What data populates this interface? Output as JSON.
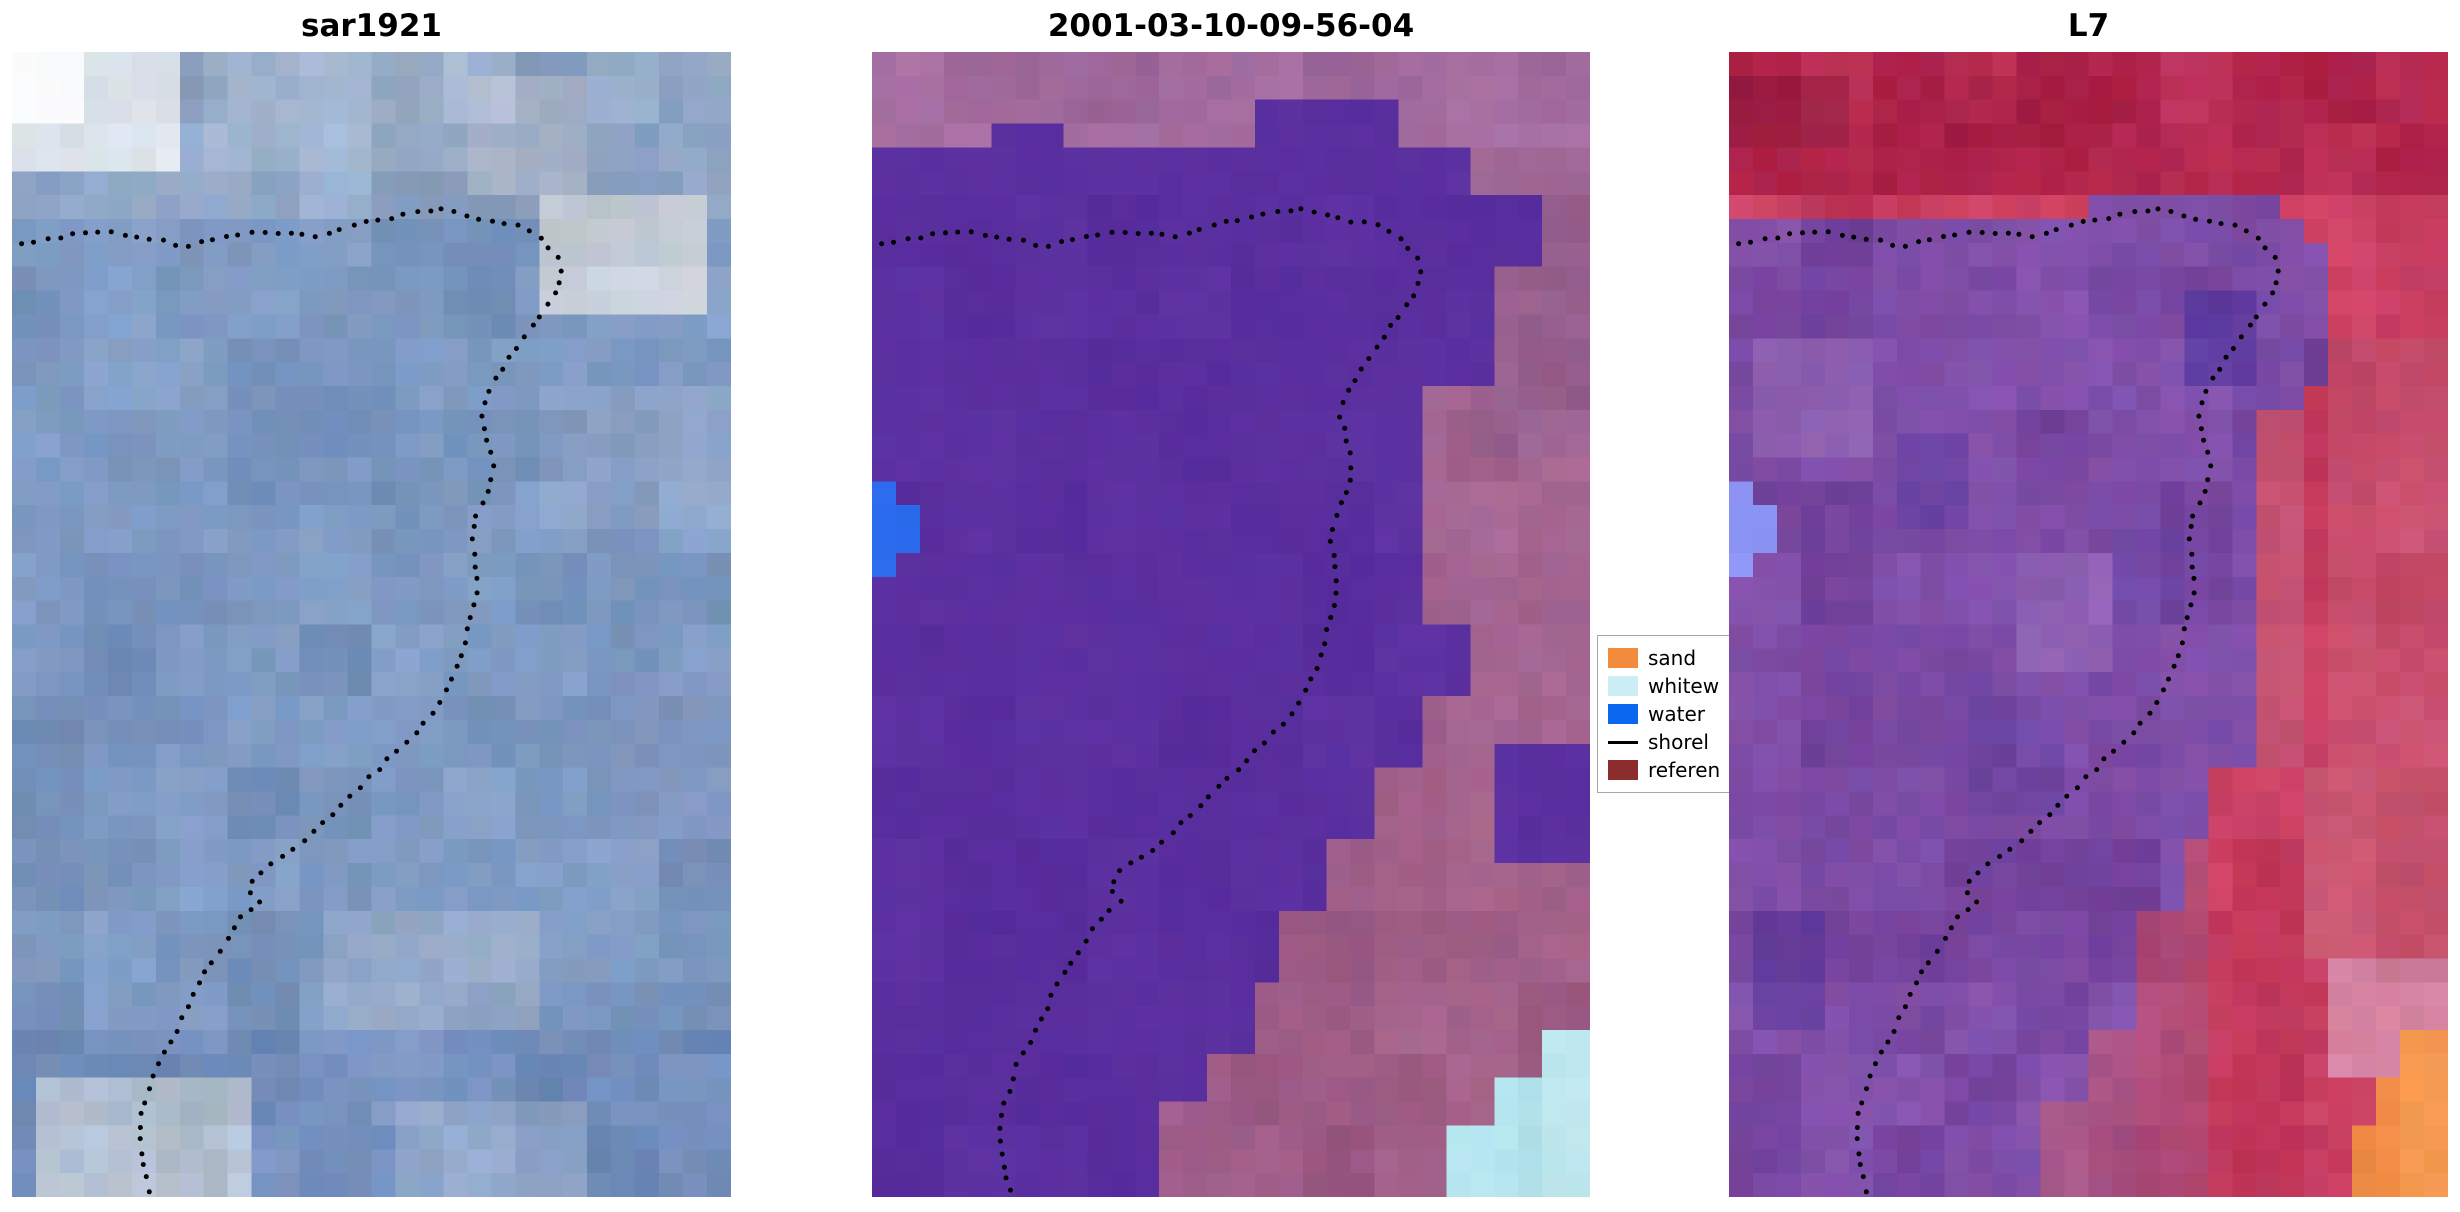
{
  "figure": {
    "background": "#ffffff",
    "grid": {
      "cols": 30,
      "rows": 48
    },
    "panels": [
      {
        "id": "sar1921",
        "title": "sar1921",
        "base": "#7d99c1",
        "base_noise": 16,
        "rects": [
          {
            "r": [
              0,
              0,
              1,
              0.155
            ],
            "c": "#8fa6c5",
            "n": 18
          },
          {
            "r": [
              0.28,
              0,
              0.62,
              0.105
            ],
            "c": "#9db1cb",
            "n": 16
          },
          {
            "r": [
              0.62,
              0.03,
              0.8,
              0.125
            ],
            "c": "#a9b7cd",
            "n": 14
          },
          {
            "r": [
              0,
              0,
              0.24,
              0.105
            ],
            "c": "#dfe5ec",
            "n": 14
          },
          {
            "r": [
              0,
              0,
              0.115,
              0.058
            ],
            "c": "#f7f9fb",
            "n": 6
          },
          {
            "r": [
              0.74,
              0.125,
              0.97,
              0.225
            ],
            "c": "#c5cdd7",
            "n": 16
          },
          {
            "r": [
              0.3,
              0.25,
              0.55,
              0.4
            ],
            "c": "#7591bb",
            "n": 13
          },
          {
            "r": [
              0.4,
              0.295,
              0.5,
              0.36
            ],
            "c": "#6b87b4",
            "n": 12
          },
          {
            "r": [
              0.05,
              0.43,
              0.3,
              0.6
            ],
            "c": "#7893bd",
            "n": 13
          },
          {
            "r": [
              0.72,
              0.29,
              1,
              0.425
            ],
            "c": "#8ba2c6",
            "n": 15
          },
          {
            "r": [
              0.84,
              0.55,
              1,
              0.72
            ],
            "c": "#8097c0",
            "n": 14
          },
          {
            "r": [
              0.1,
              0.62,
              0.38,
              0.72
            ],
            "c": "#7b96bf",
            "n": 13
          },
          {
            "r": [
              0.42,
              0.74,
              0.72,
              0.855
            ],
            "c": "#92a7c6",
            "n": 16
          },
          {
            "r": [
              0,
              0.86,
              1,
              1
            ],
            "c": "#7590bd",
            "n": 16
          },
          {
            "r": [
              0.04,
              0.9,
              0.34,
              0.99
            ],
            "c": "#b6c3d4",
            "n": 18
          },
          {
            "r": [
              0.55,
              0.92,
              0.8,
              1
            ],
            "c": "#8ca3c6",
            "n": 14
          }
        ]
      },
      {
        "id": "classified-2001-03-10-09-56-04",
        "title": "2001-03-10-09-56-04",
        "base": "#9c6095",
        "base_noise": 11,
        "rects": [
          {
            "r": [
              0,
              0,
              1,
              0.09
            ],
            "c": "#a26b9e",
            "n": 11
          },
          {
            "r": [
              0.8,
              0.09,
              1,
              0.35
            ],
            "c": "#99628f",
            "n": 11
          },
          {
            "r": [
              0.72,
              0.35,
              1,
              0.62
            ],
            "c": "#a2648f",
            "n": 11
          },
          {
            "r": [
              0.6,
              0.62,
              1,
              1
            ],
            "c": "#a05f86",
            "n": 11
          },
          {
            "r": [
              0.17,
              0.057,
              0.26,
              0.088
            ],
            "c": "#5a2f9f",
            "n": 5
          },
          {
            "r": [
              0.55,
              0.044,
              0.73,
              0.088
            ],
            "c": "#5a2f9f",
            "n": 5
          },
          {
            "r": [
              0,
              0.085,
              0.84,
              0.62
            ],
            "c": "#5a2f9f",
            "n": 5
          },
          {
            "r": [
              0,
              0.62,
              0.7,
              1
            ],
            "c": "#5a2f9f",
            "n": 5
          },
          {
            "r": [
              0.84,
              0.115,
              0.95,
              0.19
            ],
            "c": "#5a2f9f",
            "n": 5
          },
          {
            "r": [
              0.84,
              0.19,
              0.88,
              0.3
            ],
            "c": "#5a2f9f",
            "n": 5
          },
          {
            "r": [
              0.76,
              0.3,
              0.84,
              0.5
            ],
            "c": "#a0628e",
            "n": 11
          },
          {
            "r": [
              0.76,
              0.56,
              0.84,
              0.62
            ],
            "c": "#a0628e",
            "n": 11
          },
          {
            "r": [
              0.64,
              0.68,
              0.7,
              1
            ],
            "c": "#9f5e88",
            "n": 11
          },
          {
            "r": [
              0.58,
              0.745,
              0.64,
              1
            ],
            "c": "#9f5e88",
            "n": 11
          },
          {
            "r": [
              0.52,
              0.805,
              0.58,
              1
            ],
            "c": "#9f5e88",
            "n": 11
          },
          {
            "r": [
              0.46,
              0.865,
              0.52,
              1
            ],
            "c": "#9f5e88",
            "n": 11
          },
          {
            "r": [
              0.4,
              0.925,
              0.46,
              1
            ],
            "c": "#9d5c8a",
            "n": 11
          },
          {
            "r": [
              0.88,
              0.6,
              1,
              0.7
            ],
            "c": "#5a2f9f",
            "n": 5
          },
          {
            "r": [
              0,
              0.372,
              0.048,
              0.462
            ],
            "c": "#2e6ef0",
            "n": 6
          },
          {
            "r": [
              0.048,
              0.394,
              0.075,
              0.44
            ],
            "c": "#2e6ef0",
            "n": 6
          },
          {
            "r": [
              0.8,
              0.945,
              1,
              1
            ],
            "c": "#b4e4ee",
            "n": 8
          },
          {
            "r": [
              0.855,
              0.9,
              1,
              1
            ],
            "c": "#b4e4ee",
            "n": 8
          },
          {
            "r": [
              0.92,
              0.86,
              1,
              1
            ],
            "c": "#c2ebf2",
            "n": 8
          }
        ]
      },
      {
        "id": "L7",
        "title": "L7",
        "base": "#c73d60",
        "base_noise": 15,
        "rects": [
          {
            "r": [
              0,
              0,
              1,
              0.135
            ],
            "c": "#b52950",
            "n": 15
          },
          {
            "r": [
              0,
              0.012,
              0.18,
              0.078
            ],
            "c": "#9e2045",
            "n": 13
          },
          {
            "r": [
              0.3,
              0.02,
              0.52,
              0.085
            ],
            "c": "#ab2348",
            "n": 12
          },
          {
            "r": [
              0.85,
              0.25,
              1,
              0.62
            ],
            "c": "#c94f6e",
            "n": 14
          },
          {
            "r": [
              0.8,
              0.62,
              1,
              0.8
            ],
            "c": "#cc5873",
            "n": 14
          },
          {
            "r": [
              0.5,
              0.122,
              0.76,
              0.158
            ],
            "c": "#7b4aa4",
            "n": 14
          },
          {
            "r": [
              0,
              0.155,
              0.8,
              0.62
            ],
            "c": "#7b4aa4",
            "n": 15
          },
          {
            "r": [
              0,
              0.62,
              0.68,
              1
            ],
            "c": "#7b4aa4",
            "n": 15
          },
          {
            "r": [
              0.8,
              0.17,
              0.845,
              0.3
            ],
            "c": "#7b4aa4",
            "n": 14
          },
          {
            "r": [
              0.75,
              0.32,
              0.8,
              0.62
            ],
            "c": "#c04e6e",
            "n": 13
          },
          {
            "r": [
              0.62,
              0.68,
              0.68,
              1
            ],
            "c": "#b24a72",
            "n": 13
          },
          {
            "r": [
              0.56,
              0.76,
              0.62,
              1
            ],
            "c": "#ad4a77",
            "n": 13
          },
          {
            "r": [
              0.5,
              0.845,
              0.56,
              1
            ],
            "c": "#a64f7f",
            "n": 13
          },
          {
            "r": [
              0.44,
              0.925,
              0.5,
              1
            ],
            "c": "#a05283",
            "n": 13
          },
          {
            "r": [
              0.62,
              0.2,
              0.74,
              0.285
            ],
            "c": "#5e3a9e",
            "n": 10
          },
          {
            "r": [
              0.22,
              0.33,
              0.35,
              0.425
            ],
            "c": "#6a42a0",
            "n": 12
          },
          {
            "r": [
              0.33,
              0.56,
              0.46,
              0.665
            ],
            "c": "#6f45a0",
            "n": 12
          },
          {
            "r": [
              0.04,
              0.74,
              0.15,
              0.845
            ],
            "c": "#663f9d",
            "n": 12
          },
          {
            "r": [
              0.55,
              0.42,
              0.64,
              0.505
            ],
            "c": "#6f45a2",
            "n": 12
          },
          {
            "r": [
              0.05,
              0.25,
              0.2,
              0.35
            ],
            "c": "#8a5cae",
            "n": 13
          },
          {
            "r": [
              0.4,
              0.44,
              0.55,
              0.535
            ],
            "c": "#8a5cae",
            "n": 13
          },
          {
            "r": [
              0,
              0.372,
              0.034,
              0.452
            ],
            "c": "#8d95f5",
            "n": 6
          },
          {
            "r": [
              0.034,
              0.392,
              0.058,
              0.436
            ],
            "c": "#8d95f5",
            "n": 6
          },
          {
            "r": [
              0.84,
              0.8,
              1,
              0.905
            ],
            "c": "#d683a0",
            "n": 13
          },
          {
            "r": [
              0.86,
              0.935,
              1,
              1
            ],
            "c": "#ee8a44",
            "n": 10
          },
          {
            "r": [
              0.905,
              0.888,
              1,
              1
            ],
            "c": "#ee8a44",
            "n": 10
          },
          {
            "r": [
              0.95,
              0.852,
              1,
              1
            ],
            "c": "#f2974f",
            "n": 10
          }
        ]
      }
    ],
    "shoreline": {
      "color": "#000000",
      "dot_radius": 2.5,
      "dot_spacing": 13,
      "points": [
        [
          0.013,
          0.168
        ],
        [
          0.06,
          0.163
        ],
        [
          0.1,
          0.158
        ],
        [
          0.135,
          0.157
        ],
        [
          0.17,
          0.161
        ],
        [
          0.205,
          0.164
        ],
        [
          0.24,
          0.17
        ],
        [
          0.265,
          0.166
        ],
        [
          0.3,
          0.16
        ],
        [
          0.345,
          0.157
        ],
        [
          0.39,
          0.159
        ],
        [
          0.43,
          0.161
        ],
        [
          0.465,
          0.153
        ],
        [
          0.5,
          0.148
        ],
        [
          0.535,
          0.144
        ],
        [
          0.57,
          0.139
        ],
        [
          0.605,
          0.136
        ],
        [
          0.628,
          0.143
        ],
        [
          0.658,
          0.146
        ],
        [
          0.7,
          0.151
        ],
        [
          0.735,
          0.161
        ],
        [
          0.757,
          0.177
        ],
        [
          0.764,
          0.196
        ],
        [
          0.752,
          0.216
        ],
        [
          0.726,
          0.237
        ],
        [
          0.703,
          0.257
        ],
        [
          0.678,
          0.278
        ],
        [
          0.661,
          0.298
        ],
        [
          0.653,
          0.318
        ],
        [
          0.661,
          0.339
        ],
        [
          0.669,
          0.359
        ],
        [
          0.664,
          0.38
        ],
        [
          0.649,
          0.4
        ],
        [
          0.639,
          0.421
        ],
        [
          0.643,
          0.442
        ],
        [
          0.648,
          0.462
        ],
        [
          0.644,
          0.483
        ],
        [
          0.633,
          0.503
        ],
        [
          0.627,
          0.524
        ],
        [
          0.616,
          0.544
        ],
        [
          0.598,
          0.564
        ],
        [
          0.577,
          0.582
        ],
        [
          0.556,
          0.598
        ],
        [
          0.529,
          0.613
        ],
        [
          0.503,
          0.63
        ],
        [
          0.475,
          0.647
        ],
        [
          0.446,
          0.665
        ],
        [
          0.42,
          0.681
        ],
        [
          0.394,
          0.696
        ],
        [
          0.366,
          0.707
        ],
        [
          0.34,
          0.719
        ],
        [
          0.33,
          0.732
        ],
        [
          0.346,
          0.742
        ],
        [
          0.327,
          0.75
        ],
        [
          0.312,
          0.763
        ],
        [
          0.29,
          0.784
        ],
        [
          0.267,
          0.805
        ],
        [
          0.25,
          0.825
        ],
        [
          0.235,
          0.846
        ],
        [
          0.219,
          0.866
        ],
        [
          0.201,
          0.887
        ],
        [
          0.191,
          0.907
        ],
        [
          0.18,
          0.928
        ],
        [
          0.176,
          0.948
        ],
        [
          0.181,
          0.968
        ],
        [
          0.19,
          0.988
        ],
        [
          0.194,
          0.999
        ]
      ]
    },
    "legend": {
      "items": [
        {
          "label": "sand",
          "color": "#f28c3c",
          "swatch": "patch"
        },
        {
          "label": "whitew",
          "color": "#cdeef5",
          "swatch": "patch"
        },
        {
          "label": "water",
          "color": "#0b66f0",
          "swatch": "patch"
        },
        {
          "label": "shorel",
          "color": "#000000",
          "swatch": "line"
        },
        {
          "label": "referen",
          "color": "#8c2d2d",
          "swatch": "patch"
        }
      ]
    }
  },
  "chart_data": {
    "type": "heatmap",
    "title": "",
    "panel_titles": [
      "sar1921",
      "2001-03-10-09-56-04",
      "L7"
    ],
    "legend_entries": [
      "sand",
      "whitew",
      "water",
      "shorel",
      "referen"
    ],
    "legend_colors": [
      "#f28c3c",
      "#cdeef5",
      "#0b66f0",
      "#000000",
      "#8c2d2d"
    ],
    "overlay": "dotted black shoreline polyline drawn identically on all three panels",
    "notes": "three pixelated satellite / classification image panels compared side by side; panel 1 blue-gray SAR image with bright cloud top-left, panel 2 classified map with flat purple water mass, blue water patch at left edge and pale-cyan whitewater patch bottom-right, panel 3 false-color Landsat 7 with red land, mottled purple water region, periwinkle patch at left edge and orange sand patch bottom-right"
  }
}
